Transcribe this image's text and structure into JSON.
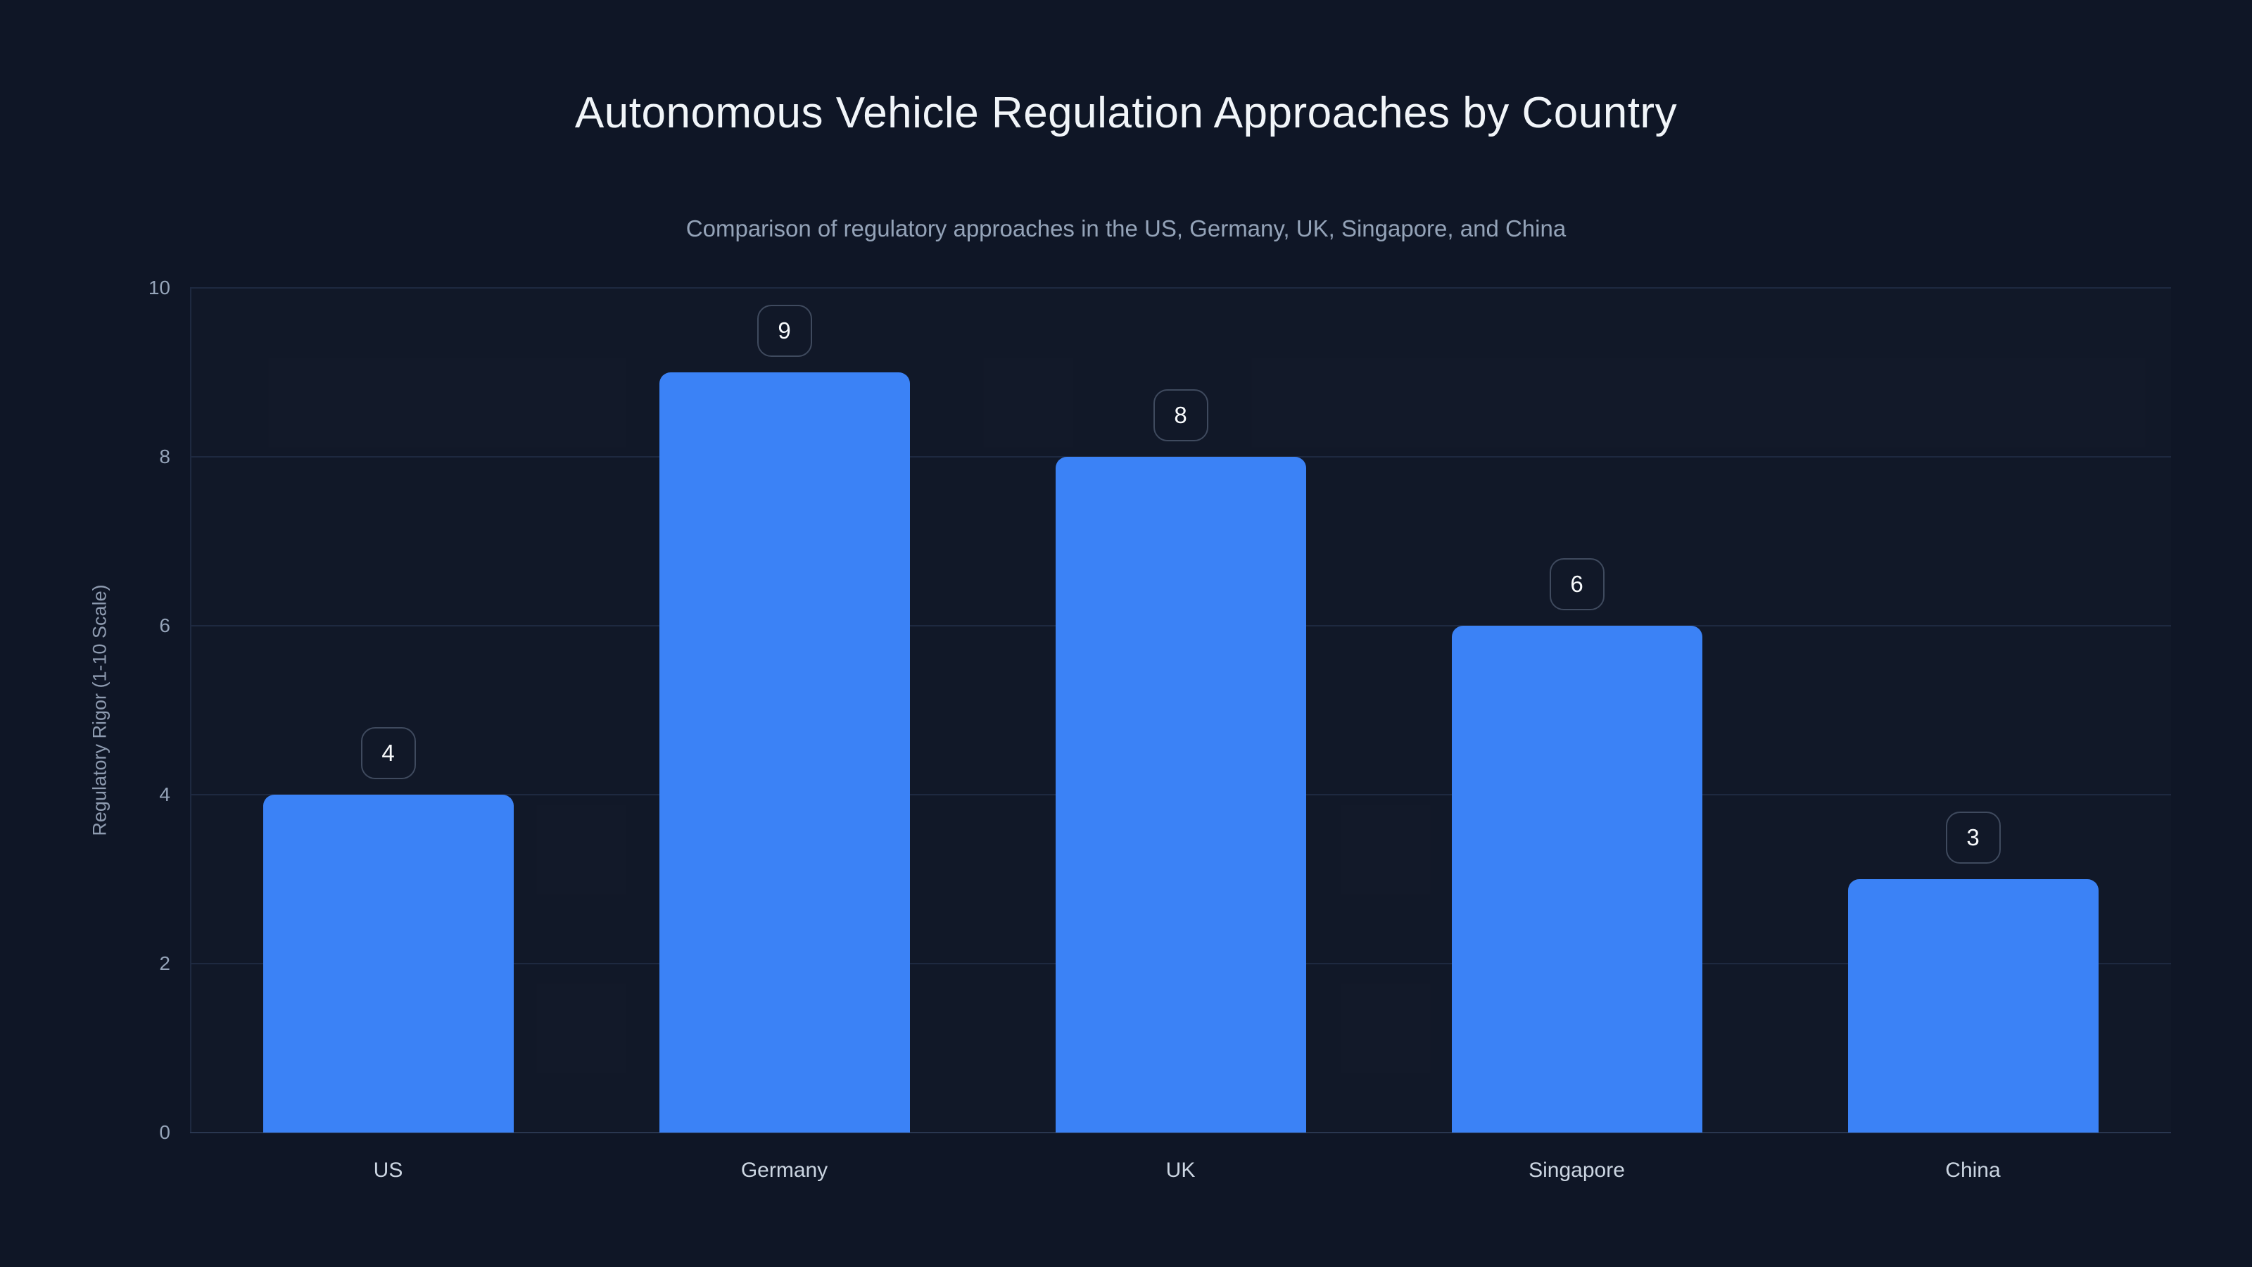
{
  "chart_data": {
    "type": "bar",
    "title": "Autonomous Vehicle Regulation Approaches by Country",
    "subtitle": "Comparison of regulatory approaches in the US, Germany, UK, Singapore, and China",
    "ylabel": "Regulatory Rigor (1-10 Scale)",
    "xlabel": "",
    "categories": [
      "US",
      "Germany",
      "UK",
      "Singapore",
      "China"
    ],
    "values": [
      4,
      9,
      8,
      6,
      3
    ],
    "value_labels": [
      "4",
      "9",
      "8",
      "6",
      "3"
    ],
    "ylim": [
      0,
      10
    ],
    "yticks": [
      0,
      2,
      4,
      6,
      8,
      10
    ],
    "grid": "horizontal",
    "legend": "none"
  },
  "colors": {
    "background": "#0f1626",
    "bar": "#3b82f6",
    "gridline": "#1e2940",
    "baseline": "#2a3750",
    "title_text": "#f1f5f9",
    "subtitle_text": "#94a3b8",
    "tick_text": "#94a3b8",
    "category_text": "#cbd5e1",
    "badge_border": "#3f4a5e",
    "badge_text": "#f8fafc"
  }
}
